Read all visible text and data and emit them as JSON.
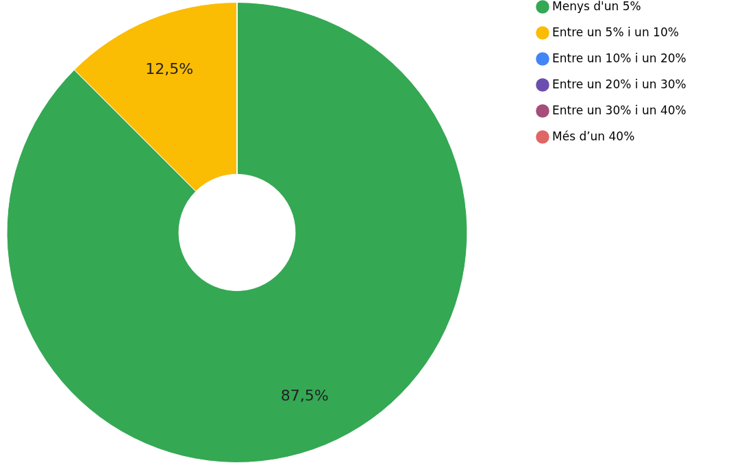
{
  "chart_data": {
    "type": "donut",
    "categories": [
      "Menys d'un 5%",
      "Entre un 5% i un 10%",
      "Entre un 10% i un 20%",
      "Entre un 20% i un 30%",
      "Entre un 30% i un 40%",
      "Més d’un 40%"
    ],
    "values": [
      87.5,
      12.5,
      0,
      0,
      0,
      0
    ],
    "colors": [
      "#34a853",
      "#fbbc04",
      "#4285f4",
      "#6a4fae",
      "#a64d79",
      "#e06666"
    ],
    "value_labels": [
      "87,5%",
      "12,5%",
      null,
      null,
      null,
      null
    ],
    "legend": "top right"
  }
}
